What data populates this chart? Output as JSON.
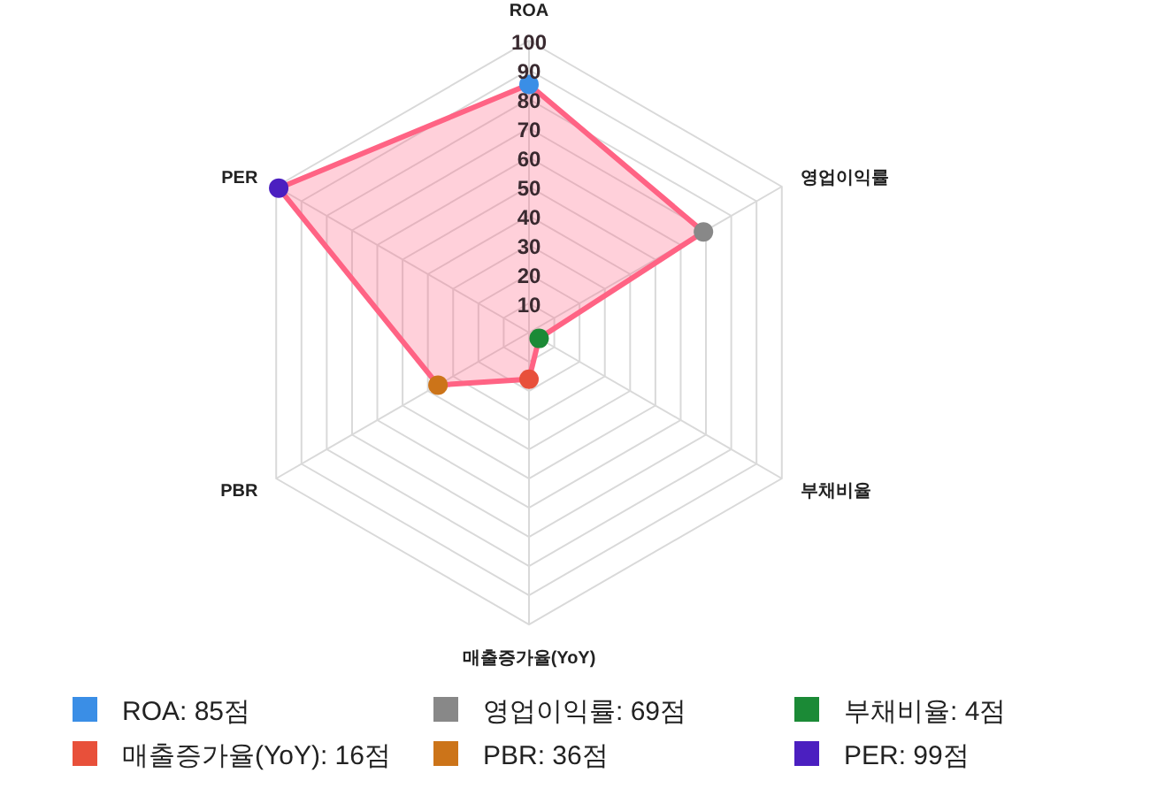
{
  "chart_data": {
    "type": "radar",
    "categories": [
      "ROA",
      "영업이익률",
      "부채비율",
      "매출증가율(YoY)",
      "PBR",
      "PER"
    ],
    "series": [
      {
        "color": "#ff6384",
        "values": [
          85,
          69,
          4,
          16,
          36,
          99
        ],
        "colors": [
          "#3a8ee6",
          "#888888",
          "#1b8a36",
          "#e8503a",
          "#cc7419",
          "#4b1fc0"
        ]
      }
    ],
    "annotations": [
      "ROA: 85점",
      "영업이익률: 69점",
      "부채비율: 4점",
      "매출증가율(YoY): 16점",
      "PBR: 36점",
      "PER: 99점"
    ],
    "ylim": [
      0,
      100
    ],
    "yticks": [
      10,
      20,
      30,
      40,
      50,
      60,
      70,
      80,
      90,
      100
    ],
    "grid": true,
    "marker": "circle"
  }
}
